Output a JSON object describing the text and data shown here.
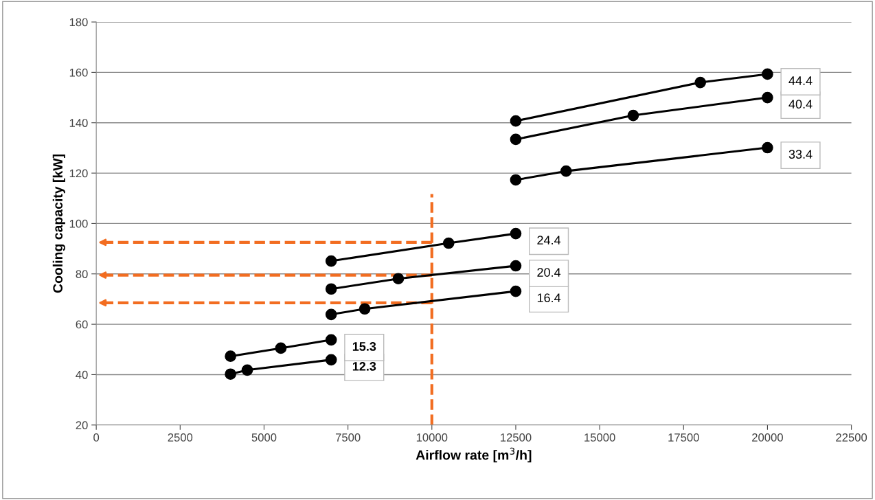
{
  "chart_data": {
    "type": "line",
    "xlabel": "Airflow rate [m$^{3}$/h]",
    "ylabel": "Cooling capacity [kW]",
    "xlim": [
      0,
      22500
    ],
    "xticks": [
      0,
      2500,
      5000,
      7500,
      10000,
      12500,
      15000,
      17500,
      20000,
      22500
    ],
    "ylim": [
      20,
      180
    ],
    "yticks": [
      20,
      40,
      60,
      80,
      100,
      120,
      140,
      160,
      180
    ],
    "grid": "y",
    "marker": "circle",
    "line_style": "solid",
    "legend": false,
    "series": [
      {
        "name": "12.3",
        "color": "#000000",
        "x": [
          4000,
          4500,
          7000
        ],
        "values": [
          40.2,
          41.8,
          45.9
        ]
      },
      {
        "name": "15.3",
        "color": "#000000",
        "x": [
          4000,
          5500,
          7000
        ],
        "values": [
          47.3,
          50.5,
          53.8
        ]
      },
      {
        "name": "16.4",
        "color": "#000000",
        "x": [
          7000,
          8000,
          12500
        ],
        "values": [
          63.9,
          66.1,
          73.1
        ]
      },
      {
        "name": "20.4",
        "color": "#000000",
        "x": [
          7000,
          9000,
          12500
        ],
        "values": [
          74.0,
          78.1,
          83.2
        ]
      },
      {
        "name": "24.4",
        "color": "#000000",
        "x": [
          7000,
          10500,
          12500
        ],
        "values": [
          85.1,
          92.2,
          96.0
        ]
      },
      {
        "name": "33.4",
        "color": "#000000",
        "x": [
          12500,
          14000,
          20000
        ],
        "values": [
          117.3,
          120.8,
          130.1
        ]
      },
      {
        "name": "40.4",
        "color": "#000000",
        "x": [
          12500,
          16000,
          20000
        ],
        "values": [
          133.4,
          142.9,
          150.0
        ]
      },
      {
        "name": "44.4",
        "color": "#000000",
        "x": [
          12500,
          18000,
          20000
        ],
        "values": [
          140.7,
          156.0,
          159.3
        ]
      }
    ],
    "ref_lines": [
      {
        "axis": "x",
        "value": 10000,
        "color": "#f26d21",
        "line_style": "dashed"
      },
      {
        "axis": "y",
        "value": 92.5,
        "color": "#f26d21",
        "line_style": "dashed"
      },
      {
        "axis": "y",
        "value": 79.5,
        "color": "#f26d21",
        "line_style": "dashed"
      },
      {
        "axis": "y",
        "value": 68.5,
        "color": "#f26d21",
        "line_style": "dashed"
      }
    ]
  }
}
